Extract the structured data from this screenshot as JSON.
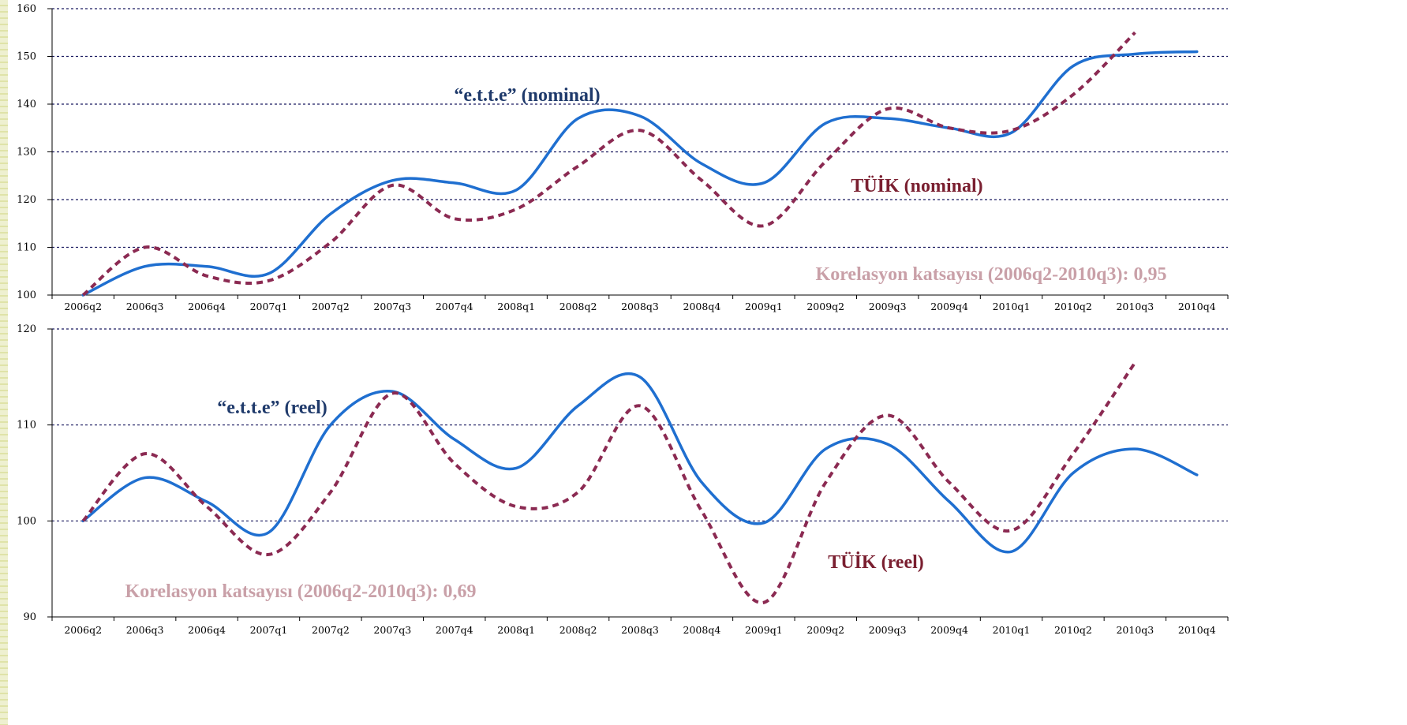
{
  "colors": {
    "ette": "#1f6fd0",
    "tuik": "#8b2a52",
    "ette_label": "#1f3a6b",
    "tuik_label": "#7a1f30",
    "corr_label": "#c9a0a8",
    "grid": "#1a1a60"
  },
  "chart_data": [
    {
      "type": "line",
      "id": "top",
      "categories": [
        "2006q2",
        "2006q3",
        "2006q4",
        "2007q1",
        "2007q2",
        "2007q3",
        "2007q4",
        "2008q1",
        "2008q2",
        "2008q3",
        "2008q4",
        "2009q1",
        "2009q2",
        "2009q3",
        "2009q4",
        "2010q1",
        "2010q2",
        "2010q3",
        "2010q4"
      ],
      "ylim": [
        100,
        160
      ],
      "yticks": [
        100,
        110,
        120,
        130,
        140,
        150,
        160
      ],
      "grid": true,
      "series": [
        {
          "name": "“e.t.t.e” (nominal)",
          "style": "solid",
          "values": [
            100,
            106,
            106,
            104.5,
            117,
            124,
            123.5,
            122,
            137,
            137.5,
            127.5,
            123.5,
            136,
            137,
            135,
            134,
            148,
            150.5,
            151
          ]
        },
        {
          "name": "TÜİK (nominal)",
          "style": "dashed",
          "values": [
            100,
            110,
            104,
            103,
            111,
            123,
            116,
            118,
            127,
            134.5,
            124,
            114.5,
            128,
            139,
            135,
            134.5,
            142,
            155,
            null
          ]
        }
      ],
      "annotation": "Korelasyon katsayısı (2006q2-2010q3): 0,95"
    },
    {
      "type": "line",
      "id": "bottom",
      "categories": [
        "2006q2",
        "2006q3",
        "2006q4",
        "2007q1",
        "2007q2",
        "2007q3",
        "2007q4",
        "2008q1",
        "2008q2",
        "2008q3",
        "2008q4",
        "2009q1",
        "2009q2",
        "2009q3",
        "2009q4",
        "2010q1",
        "2010q2",
        "2010q3",
        "2010q4"
      ],
      "ylim": [
        90,
        120
      ],
      "yticks": [
        90,
        100,
        110,
        120
      ],
      "grid": true,
      "series": [
        {
          "name": "“e.t.t.e” (reel)",
          "style": "solid",
          "values": [
            100,
            104.5,
            102,
            98.8,
            110,
            113.5,
            108.5,
            105.5,
            112,
            115,
            104,
            99.8,
            107.5,
            108,
            102,
            96.8,
            105,
            107.5,
            104.8
          ]
        },
        {
          "name": "TÜİK (reel)",
          "style": "dashed",
          "values": [
            100,
            107,
            101.5,
            96.5,
            103,
            113.3,
            106,
            101.5,
            103,
            112,
            101,
            91.5,
            104,
            111,
            104,
            99,
            107,
            116.5,
            null
          ]
        }
      ],
      "annotation": "Korelasyon katsayısı (2006q2-2010q3): 0,69"
    }
  ]
}
